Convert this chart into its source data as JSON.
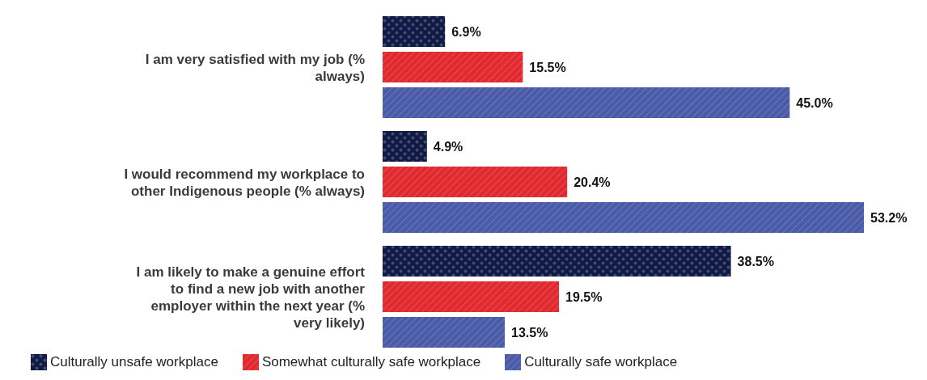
{
  "chart_data": {
    "type": "bar",
    "orientation": "horizontal",
    "categories": [
      "I am very satisfied with my job (% always)",
      "I would recommend my workplace to other Indigenous people (% always)",
      "I am likely to make a genuine effort to find a new job with another employer within the next year (% very likely)"
    ],
    "series": [
      {
        "name": "Culturally unsafe workplace",
        "color": "#0f1a45",
        "values": [
          6.9,
          4.9,
          38.5
        ],
        "value_labels": [
          "6.9%",
          "4.9%",
          "38.5%"
        ]
      },
      {
        "name": "Somewhat culturally safe workplace",
        "color": "#e02a2f",
        "values": [
          15.5,
          20.4,
          19.5
        ],
        "value_labels": [
          "15.5%",
          "20.4%",
          "19.5%"
        ]
      },
      {
        "name": "Culturally safe workplace",
        "color": "#4a5ba8",
        "values": [
          45.0,
          53.2,
          13.5
        ],
        "value_labels": [
          "45.0%",
          "53.2%",
          "13.5%"
        ]
      }
    ],
    "legend": "bottom",
    "grid": false
  }
}
